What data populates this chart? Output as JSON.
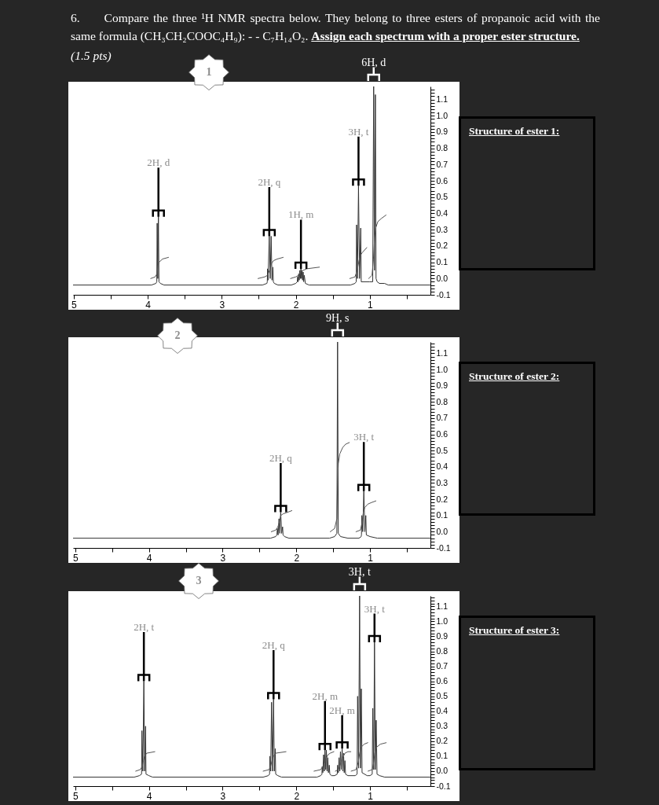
{
  "chart_data": [
    {
      "type": "line",
      "title": "6. Compare the three ¹H NMR spectra below. They belong to three esters of propanoic acid with the same formula (CH₃CH₂COOC₄H₉): - - C₇H₁₄O₂. Assign each spectrum with a proper ester structure.",
      "xlim": [
        5.01,
        0.18
      ],
      "ylim": [
        -0.1,
        1.18
      ],
      "xticks": [
        5,
        {
          "value": 4.5,
          "label": null
        },
        4,
        {
          "value": 3.5,
          "label": null
        },
        3,
        {
          "value": 2.5,
          "label": null
        },
        2,
        {
          "value": 1.5,
          "label": null
        },
        1,
        {
          "value": 0.5,
          "label": null
        }
      ],
      "yticks": [
        {
          "value": -0.1,
          "label": "-0.1"
        },
        {
          "value": -0.08,
          "label": null
        },
        {
          "value": -0.06,
          "label": null
        },
        {
          "value": -0.04,
          "label": null
        },
        {
          "value": -0.02,
          "label": null
        },
        {
          "value": 0,
          "label": "0.0"
        },
        {
          "value": 0.02,
          "label": null
        },
        {
          "value": 0.04,
          "label": null
        },
        {
          "value": 0.06,
          "label": null
        },
        {
          "value": 0.08,
          "label": null
        },
        0.1,
        {
          "value": 0.12,
          "label": null
        },
        {
          "value": 0.14,
          "label": null
        },
        {
          "value": 0.16,
          "label": null
        },
        {
          "value": 0.18,
          "label": null
        },
        0.2,
        {
          "value": 0.22,
          "label": null
        },
        {
          "value": 0.24,
          "label": null
        },
        {
          "value": 0.26,
          "label": null
        },
        {
          "value": 0.28,
          "label": null
        },
        0.3,
        {
          "value": 0.32,
          "label": null
        },
        {
          "value": 0.34,
          "label": null
        },
        {
          "value": 0.36,
          "label": null
        },
        {
          "value": 0.38,
          "label": null
        },
        0.4,
        {
          "value": 0.42,
          "label": null
        },
        {
          "value": 0.44,
          "label": null
        },
        {
          "value": 0.46,
          "label": null
        },
        {
          "value": 0.48,
          "label": null
        },
        0.5,
        {
          "value": 0.52,
          "label": null
        },
        {
          "value": 0.54,
          "label": null
        },
        {
          "value": 0.56,
          "label": null
        },
        {
          "value": 0.58,
          "label": null
        },
        0.6,
        {
          "value": 0.62,
          "label": null
        },
        {
          "value": 0.64,
          "label": null
        },
        {
          "value": 0.66,
          "label": null
        },
        {
          "value": 0.68,
          "label": null
        },
        0.7,
        {
          "value": 0.72,
          "label": null
        },
        {
          "value": 0.74,
          "label": null
        },
        {
          "value": 0.76,
          "label": null
        },
        {
          "value": 0.78,
          "label": null
        },
        0.8,
        {
          "value": 0.82,
          "label": null
        },
        {
          "value": 0.84,
          "label": null
        },
        {
          "value": 0.86,
          "label": null
        },
        {
          "value": 0.88,
          "label": null
        },
        0.9,
        {
          "value": 0.92,
          "label": null
        },
        {
          "value": 0.94,
          "label": null
        },
        {
          "value": 0.96,
          "label": null
        },
        {
          "value": 0.98,
          "label": null
        },
        {
          "value": 1,
          "label": "1.0"
        },
        {
          "value": 1.02,
          "label": null
        },
        {
          "value": 1.04,
          "label": null
        },
        {
          "value": 1.06,
          "label": null
        },
        {
          "value": 1.08,
          "label": null
        },
        1.1,
        {
          "value": 1.12,
          "label": null
        },
        {
          "value": 1.14,
          "label": null
        },
        {
          "value": 1.16,
          "label": null
        }
      ],
      "series": [
        {
          "color": "#333333",
          "x": [
            5.01,
            3.95,
            3.89,
            3.878,
            3.873,
            3.865,
            3.856,
            3.849,
            3.83,
            3.78,
            2.45,
            2.39,
            2.385,
            2.381,
            2.375,
            2.358,
            2.346,
            2.333,
            2.321,
            2.309,
            2.303,
            2.29,
            2.24,
            2.06,
            2.0,
            1.98,
            1.975,
            1.968,
            1.96,
            1.953,
            1.945,
            1.938,
            1.93,
            1.923,
            1.915,
            1.908,
            1.9,
            1.893,
            1.885,
            1.87,
            1.82,
            1.26,
            1.2,
            1.183,
            1.178,
            1.166,
            1.152,
            1.138,
            1.122,
            1.115,
            1.0,
            0.96,
            0.947,
            0.936,
            0.924,
            0.915,
            0.9,
            0.87,
            0.8,
            0.75,
            0.18
          ],
          "values": [
            -0.04,
            -0.04,
            -0.03,
            -0.02,
            0.34,
            0.0,
            0.38,
            -0.02,
            -0.03,
            -0.04,
            -0.04,
            -0.03,
            -0.02,
            0.06,
            -0.01,
            0.26,
            0.0,
            0.26,
            -0.01,
            0.07,
            -0.02,
            -0.03,
            -0.04,
            -0.04,
            -0.03,
            -0.02,
            0.01,
            -0.02,
            0.03,
            -0.01,
            0.05,
            0.0,
            0.06,
            0.0,
            0.05,
            -0.01,
            0.04,
            -0.02,
            0.02,
            -0.03,
            -0.04,
            -0.04,
            -0.03,
            -0.02,
            0.33,
            0.0,
            0.57,
            0.0,
            0.31,
            -0.02,
            -0.02,
            -0.02,
            1.18,
            0.05,
            1.13,
            0.0,
            -0.02,
            -0.03,
            -0.03,
            -0.04,
            -0.04
          ]
        },
        {
          "color": "#555555",
          "x": [
            3.96,
            3.9,
            3.875,
            3.862,
            3.848,
            3.8,
            3.72,
            3.0,
            2.51,
            2.42,
            2.38,
            2.355,
            2.33,
            2.3,
            2.25,
            2.17,
            2.12,
            2.07,
            2.0,
            1.96,
            1.93,
            1.9,
            1.85,
            1.68,
            1.5,
            1.27,
            1.2,
            1.17,
            1.15,
            1.13,
            1.1,
            1.04,
            1.02,
            1.015,
            0.97,
            0.95,
            0.935,
            0.92,
            0.89,
            0.84,
            0.78
          ],
          "values": [
            0.0,
            0.01,
            0.03,
            0.08,
            0.1,
            0.12,
            0.13,
            null,
            0.0,
            0.01,
            0.02,
            0.05,
            0.09,
            0.11,
            0.12,
            0.13,
            null,
            0.0,
            0.01,
            0.02,
            0.04,
            0.05,
            0.06,
            0.07,
            null,
            0.0,
            0.01,
            0.05,
            0.1,
            0.14,
            0.16,
            0.19,
            null,
            0.0,
            0.02,
            0.12,
            0.25,
            0.31,
            0.35,
            0.37,
            0.39
          ]
        }
      ],
      "annotations": [
        "Structure of ester 1:",
        "1",
        "(1.5 pts)",
        {
          "text": "2H, d",
          "x": 3.856,
          "y": 0.38
        },
        {
          "text": "2H, q",
          "x": 2.358,
          "y": 0.26
        },
        {
          "text": "1H, m",
          "x": 1.93,
          "y": 0.06
        },
        {
          "text": "3H, t",
          "x": 1.152,
          "y": 0.57
        },
        {
          "text": "6H, d",
          "x": 0.947,
          "y": 1.18
        }
      ]
    },
    {
      "type": "line",
      "xlim": [
        5.03,
        0.18
      ],
      "ylim": [
        -0.1,
        1.17
      ],
      "xticks": [
        5,
        {
          "value": 4.5,
          "label": null
        },
        4,
        {
          "value": 3.5,
          "label": null
        },
        3,
        {
          "value": 2.5,
          "label": null
        },
        2,
        {
          "value": 1.5,
          "label": null
        },
        1,
        {
          "value": 0.5,
          "label": null
        }
      ],
      "yticks": [
        {
          "value": -0.1,
          "label": "-0.1"
        },
        {
          "value": -0.08,
          "label": null
        },
        {
          "value": -0.06,
          "label": null
        },
        {
          "value": -0.04,
          "label": null
        },
        {
          "value": -0.02,
          "label": null
        },
        {
          "value": 0,
          "label": "0.0"
        },
        {
          "value": 0.02,
          "label": null
        },
        {
          "value": 0.04,
          "label": null
        },
        {
          "value": 0.06,
          "label": null
        },
        {
          "value": 0.08,
          "label": null
        },
        0.1,
        {
          "value": 0.12,
          "label": null
        },
        {
          "value": 0.14,
          "label": null
        },
        {
          "value": 0.16,
          "label": null
        },
        {
          "value": 0.18,
          "label": null
        },
        0.2,
        {
          "value": 0.22,
          "label": null
        },
        {
          "value": 0.24,
          "label": null
        },
        {
          "value": 0.26,
          "label": null
        },
        {
          "value": 0.28,
          "label": null
        },
        0.3,
        {
          "value": 0.32,
          "label": null
        },
        {
          "value": 0.34,
          "label": null
        },
        {
          "value": 0.36,
          "label": null
        },
        {
          "value": 0.38,
          "label": null
        },
        0.4,
        {
          "value": 0.42,
          "label": null
        },
        {
          "value": 0.44,
          "label": null
        },
        {
          "value": 0.46,
          "label": null
        },
        {
          "value": 0.48,
          "label": null
        },
        0.5,
        {
          "value": 0.52,
          "label": null
        },
        {
          "value": 0.54,
          "label": null
        },
        {
          "value": 0.56,
          "label": null
        },
        {
          "value": 0.58,
          "label": null
        },
        0.6,
        {
          "value": 0.62,
          "label": null
        },
        {
          "value": 0.64,
          "label": null
        },
        {
          "value": 0.66,
          "label": null
        },
        {
          "value": 0.68,
          "label": null
        },
        0.7,
        {
          "value": 0.72,
          "label": null
        },
        {
          "value": 0.74,
          "label": null
        },
        {
          "value": 0.76,
          "label": null
        },
        {
          "value": 0.78,
          "label": null
        },
        0.8,
        {
          "value": 0.82,
          "label": null
        },
        {
          "value": 0.84,
          "label": null
        },
        {
          "value": 0.86,
          "label": null
        },
        {
          "value": 0.88,
          "label": null
        },
        0.9,
        {
          "value": 0.92,
          "label": null
        },
        {
          "value": 0.94,
          "label": null
        },
        {
          "value": 0.96,
          "label": null
        },
        {
          "value": 0.98,
          "label": null
        },
        {
          "value": 1,
          "label": "1.0"
        },
        {
          "value": 1.02,
          "label": null
        },
        {
          "value": 1.04,
          "label": null
        },
        {
          "value": 1.06,
          "label": null
        },
        {
          "value": 1.08,
          "label": null
        },
        1.1,
        {
          "value": 1.12,
          "label": null
        },
        {
          "value": 1.14,
          "label": null
        },
        {
          "value": 1.16,
          "label": null
        }
      ],
      "series": [
        {
          "color": "#333333",
          "x": [
            5.03,
            2.35,
            2.28,
            2.263,
            2.258,
            2.247,
            2.235,
            2.224,
            2.212,
            2.199,
            2.186,
            2.18,
            2.16,
            2.1,
            1.55,
            1.48,
            1.45,
            1.44,
            1.43,
            1.4,
            1.3,
            1.15,
            1.12,
            1.116,
            1.111,
            1.098,
            1.084,
            1.07,
            1.057,
            1.05,
            1.0,
            0.9,
            0.18
          ],
          "values": [
            -0.04,
            -0.04,
            -0.03,
            -0.02,
            0.02,
            -0.02,
            0.08,
            -0.01,
            0.12,
            -0.01,
            0.03,
            -0.02,
            -0.03,
            -0.04,
            -0.04,
            -0.03,
            -0.01,
            1.17,
            -0.01,
            -0.03,
            -0.04,
            -0.04,
            -0.03,
            -0.02,
            0.1,
            0.0,
            0.25,
            0.0,
            0.1,
            -0.02,
            -0.03,
            -0.04,
            -0.04
          ]
        },
        {
          "color": "#555555",
          "x": [
            2.34,
            2.28,
            2.25,
            2.23,
            2.21,
            2.18,
            2.12,
            2.06,
            1.8,
            1.54,
            1.48,
            1.45,
            1.44,
            1.43,
            1.41,
            1.37,
            1.33,
            1.28,
            1.23,
            1.19,
            1.13,
            1.11,
            1.09,
            1.07,
            1.03,
            0.98,
            0.92
          ],
          "values": [
            0.0,
            0.01,
            0.03,
            0.06,
            0.1,
            0.11,
            0.12,
            0.13,
            null,
            0.0,
            0.02,
            0.08,
            0.3,
            0.42,
            0.48,
            0.52,
            0.54,
            0.55,
            null,
            0.0,
            0.01,
            0.05,
            0.12,
            0.15,
            0.17,
            0.18,
            0.19
          ]
        }
      ],
      "annotations": [
        "Structure of ester 2:",
        "2",
        {
          "text": "2H, q",
          "x": 2.212,
          "y": 0.12
        },
        {
          "text": "9H, s",
          "x": 1.44,
          "y": 1.17
        },
        {
          "text": "3H, t",
          "x": 1.084,
          "y": 0.25
        }
      ]
    },
    {
      "type": "line",
      "xlim": [
        5.03,
        0.18
      ],
      "ylim": [
        -0.1,
        1.17
      ],
      "xticks": [
        5,
        {
          "value": 4.5,
          "label": null
        },
        4,
        {
          "value": 3.5,
          "label": null
        },
        3,
        {
          "value": 2.5,
          "label": null
        },
        2,
        {
          "value": 1.5,
          "label": null
        },
        1,
        {
          "value": 0.5,
          "label": null
        }
      ],
      "yticks": [
        {
          "value": -0.1,
          "label": "-0.1"
        },
        {
          "value": -0.08,
          "label": null
        },
        {
          "value": -0.06,
          "label": null
        },
        {
          "value": -0.04,
          "label": null
        },
        {
          "value": -0.02,
          "label": null
        },
        {
          "value": 0,
          "label": "0.0"
        },
        {
          "value": 0.02,
          "label": null
        },
        {
          "value": 0.04,
          "label": null
        },
        {
          "value": 0.06,
          "label": null
        },
        {
          "value": 0.08,
          "label": null
        },
        0.1,
        {
          "value": 0.12,
          "label": null
        },
        {
          "value": 0.14,
          "label": null
        },
        {
          "value": 0.16,
          "label": null
        },
        {
          "value": 0.18,
          "label": null
        },
        0.2,
        {
          "value": 0.22,
          "label": null
        },
        {
          "value": 0.24,
          "label": null
        },
        {
          "value": 0.26,
          "label": null
        },
        {
          "value": 0.28,
          "label": null
        },
        0.3,
        {
          "value": 0.32,
          "label": null
        },
        {
          "value": 0.34,
          "label": null
        },
        {
          "value": 0.36,
          "label": null
        },
        {
          "value": 0.38,
          "label": null
        },
        0.4,
        {
          "value": 0.42,
          "label": null
        },
        {
          "value": 0.44,
          "label": null
        },
        {
          "value": 0.46,
          "label": null
        },
        {
          "value": 0.48,
          "label": null
        },
        0.5,
        {
          "value": 0.52,
          "label": null
        },
        {
          "value": 0.54,
          "label": null
        },
        {
          "value": 0.56,
          "label": null
        },
        {
          "value": 0.58,
          "label": null
        },
        0.6,
        {
          "value": 0.62,
          "label": null
        },
        {
          "value": 0.64,
          "label": null
        },
        {
          "value": 0.66,
          "label": null
        },
        {
          "value": 0.68,
          "label": null
        },
        0.7,
        {
          "value": 0.72,
          "label": null
        },
        {
          "value": 0.74,
          "label": null
        },
        {
          "value": 0.76,
          "label": null
        },
        {
          "value": 0.78,
          "label": null
        },
        0.8,
        {
          "value": 0.82,
          "label": null
        },
        {
          "value": 0.84,
          "label": null
        },
        {
          "value": 0.86,
          "label": null
        },
        {
          "value": 0.88,
          "label": null
        },
        0.9,
        {
          "value": 0.92,
          "label": null
        },
        {
          "value": 0.94,
          "label": null
        },
        {
          "value": 0.96,
          "label": null
        },
        {
          "value": 0.98,
          "label": null
        },
        {
          "value": 1,
          "label": "1.0"
        },
        {
          "value": 1.02,
          "label": null
        },
        {
          "value": 1.04,
          "label": null
        },
        {
          "value": 1.06,
          "label": null
        },
        {
          "value": 1.08,
          "label": null
        },
        1.1,
        {
          "value": 1.12,
          "label": null
        },
        {
          "value": 1.14,
          "label": null
        },
        {
          "value": 1.16,
          "label": null
        }
      ],
      "series": [
        {
          "color": "#333333",
          "x": [
            5.03,
            4.2,
            4.13,
            4.1,
            4.095,
            4.083,
            4.069,
            4.058,
            4.046,
            4.04,
            4.0,
            3.95,
            2.45,
            2.38,
            2.363,
            2.359,
            2.348,
            2.336,
            2.323,
            2.309,
            2.298,
            2.286,
            2.28,
            2.25,
            2.2,
            1.72,
            1.67,
            1.652,
            1.649,
            1.64,
            1.63,
            1.62,
            1.611,
            1.601,
            1.592,
            1.583,
            1.573,
            1.564,
            1.553,
            1.545,
            1.52,
            1.48,
            1.445,
            1.439,
            1.43,
            1.42,
            1.41,
            1.401,
            1.39,
            1.378,
            1.368,
            1.359,
            1.35,
            1.34,
            1.332,
            1.3,
            1.2,
            1.175,
            1.168,
            1.155,
            1.141,
            1.13,
            1.118,
            1.108,
            1.04,
            1.0,
            0.97,
            0.962,
            0.95,
            0.939,
            0.928,
            0.916,
            0.905,
            0.87,
            0.8,
            0.18
          ],
          "values": [
            -0.04,
            -0.04,
            -0.03,
            -0.02,
            0.27,
            0.0,
            0.6,
            0.0,
            0.3,
            -0.02,
            -0.03,
            -0.04,
            -0.04,
            -0.03,
            -0.02,
            0.1,
            0.0,
            0.46,
            0.0,
            0.48,
            0.0,
            0.15,
            -0.02,
            -0.03,
            -0.04,
            -0.04,
            -0.03,
            -0.02,
            0.03,
            -0.01,
            0.11,
            0.0,
            0.14,
            0.01,
            0.14,
            0.0,
            0.09,
            -0.01,
            0.04,
            -0.02,
            -0.03,
            -0.03,
            -0.02,
            0.04,
            -0.01,
            0.09,
            0.0,
            0.13,
            0.01,
            0.15,
            0.0,
            0.12,
            -0.01,
            0.07,
            -0.02,
            -0.03,
            -0.03,
            -0.02,
            0.5,
            0.02,
            1.17,
            0.02,
            0.55,
            -0.01,
            -0.03,
            -0.03,
            -0.02,
            0.42,
            0.01,
            0.86,
            0.01,
            0.34,
            -0.02,
            -0.03,
            -0.04,
            -0.04
          ]
        },
        {
          "color": "#555555",
          "x": [
            4.18,
            4.12,
            4.09,
            4.075,
            4.06,
            4.03,
            3.92,
            3.5,
            2.45,
            2.37,
            2.35,
            2.33,
            2.31,
            2.28,
            2.14,
            1.9,
            1.76,
            1.67,
            1.64,
            1.6,
            1.57,
            1.54,
            1.49,
            1.475,
            1.47,
            1.43,
            1.4,
            1.37,
            1.34,
            1.3,
            1.26,
            1.258,
            1.256,
            1.19,
            1.16,
            1.14,
            1.12,
            1.08,
            1.03,
            1.028,
            1.027,
            0.97,
            0.95,
            0.935,
            0.91,
            0.86,
            0.78
          ],
          "values": [
            0.0,
            0.01,
            0.03,
            0.07,
            0.1,
            0.12,
            0.13,
            null,
            0.0,
            0.01,
            0.03,
            0.07,
            0.1,
            0.12,
            0.13,
            null,
            0.0,
            0.01,
            0.03,
            0.08,
            0.11,
            0.12,
            0.13,
            null,
            0.0,
            0.01,
            0.05,
            0.09,
            0.12,
            0.13,
            0.13,
            null,
            0.0,
            0.01,
            0.06,
            0.12,
            0.16,
            0.18,
            0.19,
            null,
            0.0,
            0.01,
            0.06,
            0.12,
            0.16,
            0.18,
            0.19
          ]
        }
      ],
      "annotations": [
        "Structure of ester 3:",
        "3",
        {
          "text": "2H, t",
          "x": 4.069,
          "y": 0.6
        },
        {
          "text": "2H, q",
          "x": 2.309,
          "y": 0.48
        },
        {
          "text": "2H, m",
          "x": 1.611,
          "y": 0.14
        },
        {
          "text": "2H, m",
          "x": 1.378,
          "y": 0.15
        },
        {
          "text": "3H, t",
          "x": 1.141,
          "y": 1.17
        },
        {
          "text": "3H, t",
          "x": 0.939,
          "y": 0.86
        }
      ]
    }
  ]
}
